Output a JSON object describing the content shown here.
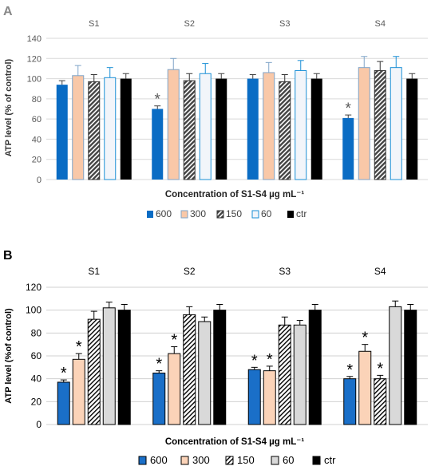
{
  "chart_data": [
    {
      "panel": "A",
      "type": "bar",
      "title": "",
      "xlabel": "Concentration of S1-S4 µg mL⁻¹",
      "ylabel": "ATP level (% of control)",
      "ylim": [
        0,
        140
      ],
      "yticks": [
        0,
        20,
        40,
        60,
        80,
        100,
        120,
        140
      ],
      "grid": true,
      "legend_position": "bottom",
      "categories": [
        "S1",
        "S2",
        "S3",
        "S4"
      ],
      "series": [
        {
          "name": "600",
          "values": [
            94,
            70,
            100,
            61
          ],
          "errors": [
            4,
            3,
            4,
            3
          ],
          "fill": "#0a6cc4",
          "pattern": "solid",
          "stroke": "none"
        },
        {
          "name": "300",
          "values": [
            103,
            109,
            106,
            111
          ],
          "errors": [
            10,
            11,
            10,
            11
          ],
          "fill": "#f9c8a8",
          "pattern": "solid",
          "stroke": "#7fa4c8"
        },
        {
          "name": "150",
          "values": [
            97,
            98,
            97,
            108
          ],
          "errors": [
            7,
            7,
            7,
            9
          ],
          "fill": "#555555",
          "pattern": "hatch-dark",
          "stroke": "#333333"
        },
        {
          "name": "60",
          "values": [
            101,
            105,
            108,
            111
          ],
          "errors": [
            10,
            10,
            10,
            11
          ],
          "fill": "#f2f5fa",
          "pattern": "solid",
          "stroke": "#1a8fd6"
        },
        {
          "name": "ctr",
          "values": [
            100,
            100,
            100,
            100
          ],
          "errors": [
            5,
            5,
            5,
            5
          ],
          "fill": "#000000",
          "pattern": "solid",
          "stroke": "none"
        }
      ],
      "annotations": [
        {
          "text": "*",
          "category": "S2",
          "series": "600"
        },
        {
          "text": "*",
          "category": "S4",
          "series": "600"
        }
      ]
    },
    {
      "panel": "B",
      "type": "bar",
      "title": "",
      "xlabel": "Concentration of S1-S4 µg mL⁻¹",
      "ylabel": "ATP level (%of control)",
      "ylim": [
        0,
        120
      ],
      "yticks": [
        0,
        20,
        40,
        60,
        80,
        100,
        120
      ],
      "grid": true,
      "legend_position": "bottom",
      "categories": [
        "S1",
        "S2",
        "S3",
        "S4"
      ],
      "series": [
        {
          "name": "600",
          "values": [
            37,
            45,
            48,
            40
          ],
          "errors": [
            2,
            2,
            2,
            2
          ],
          "fill": "#1a6fc8",
          "pattern": "solid",
          "stroke": "#000000"
        },
        {
          "name": "300",
          "values": [
            57,
            62,
            47,
            64
          ],
          "errors": [
            5,
            6,
            4,
            6
          ],
          "fill": "#fbd3b8",
          "pattern": "solid",
          "stroke": "#000000"
        },
        {
          "name": "150",
          "values": [
            92,
            96,
            87,
            40
          ],
          "errors": [
            7,
            7,
            7,
            3
          ],
          "fill": "#ffffff",
          "pattern": "hatch-light",
          "stroke": "#000000"
        },
        {
          "name": "60",
          "values": [
            102,
            90,
            87,
            103
          ],
          "errors": [
            5,
            4,
            4,
            5
          ],
          "fill": "#d9d9d9",
          "pattern": "solid",
          "stroke": "#000000"
        },
        {
          "name": "ctr",
          "values": [
            100,
            100,
            100,
            100
          ],
          "errors": [
            5,
            5,
            5,
            5
          ],
          "fill": "#000000",
          "pattern": "solid",
          "stroke": "#000000"
        }
      ],
      "annotations": [
        {
          "text": "*",
          "category": "S1",
          "series": "600"
        },
        {
          "text": "*",
          "category": "S1",
          "series": "300"
        },
        {
          "text": "*",
          "category": "S2",
          "series": "600"
        },
        {
          "text": "*",
          "category": "S2",
          "series": "300"
        },
        {
          "text": "*",
          "category": "S3",
          "series": "600"
        },
        {
          "text": "*",
          "category": "S3",
          "series": "300"
        },
        {
          "text": "*",
          "category": "S4",
          "series": "600"
        },
        {
          "text": "*",
          "category": "S4",
          "series": "300"
        },
        {
          "text": "*",
          "category": "S4",
          "series": "150"
        }
      ]
    }
  ]
}
